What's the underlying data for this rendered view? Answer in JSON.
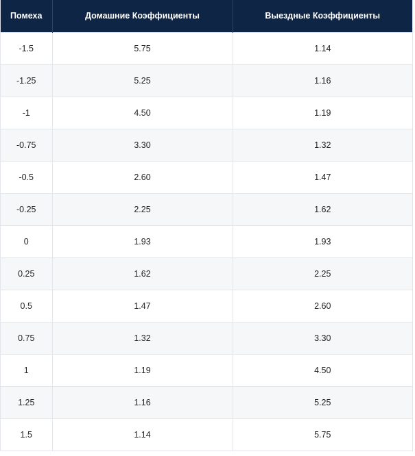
{
  "table": {
    "headers": [
      "Помеха",
      "Домашние Коэффициенты",
      "Выездные Коэффициенты"
    ],
    "rows": [
      [
        "-1.5",
        "5.75",
        "1.14"
      ],
      [
        "-1.25",
        "5.25",
        "1.16"
      ],
      [
        "-1",
        "4.50",
        "1.19"
      ],
      [
        "-0.75",
        "3.30",
        "1.32"
      ],
      [
        "-0.5",
        "2.60",
        "1.47"
      ],
      [
        "-0.25",
        "2.25",
        "1.62"
      ],
      [
        "0",
        "1.93",
        "1.93"
      ],
      [
        "0.25",
        "1.62",
        "2.25"
      ],
      [
        "0.5",
        "1.47",
        "2.60"
      ],
      [
        "0.75",
        "1.32",
        "3.30"
      ],
      [
        "1",
        "1.19",
        "4.50"
      ],
      [
        "1.25",
        "1.16",
        "5.25"
      ],
      [
        "1.5",
        "1.14",
        "5.75"
      ]
    ]
  },
  "colors": {
    "header_bg": "#0e2545",
    "header_text": "#ffffff",
    "row_alt_bg": "#f6f7f8",
    "border": "#e4e7ea"
  }
}
